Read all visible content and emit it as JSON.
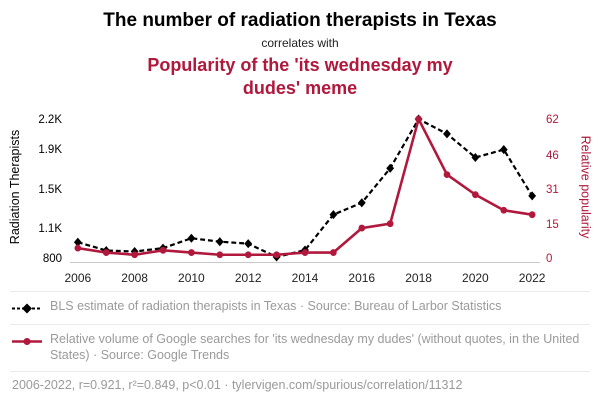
{
  "header": {
    "title": "The number of radiation therapists in Texas",
    "connector": "correlates with",
    "meme_title": "Popularity of the 'its wednesday my dudes' meme"
  },
  "colors": {
    "series1": "#000000",
    "series2": "#b0183c",
    "muted_text": "#9a9a9a"
  },
  "chart_data": {
    "type": "line",
    "title": "The number of radiation therapists in Texas correlates with Popularity of the 'its wednesday my dudes' meme",
    "x": [
      2006,
      2007,
      2008,
      2009,
      2010,
      2011,
      2012,
      2013,
      2014,
      2015,
      2016,
      2017,
      2018,
      2019,
      2020,
      2021,
      2022
    ],
    "x_ticks": [
      2006,
      2008,
      2010,
      2012,
      2014,
      2016,
      2018,
      2020,
      2022
    ],
    "series": [
      {
        "name": "BLS estimate of radiation therapists in Texas",
        "axis": "left",
        "style": "dashed-diamond",
        "values": [
          950,
          865,
          855,
          890,
          990,
          955,
          935,
          800,
          870,
          1230,
          1350,
          1700,
          2200,
          2050,
          1810,
          1890,
          1420
        ]
      },
      {
        "name": "Relative volume of Google searches for 'its wednesday my dudes'",
        "axis": "right",
        "style": "solid-circle",
        "values": [
          4,
          2,
          1,
          3,
          2,
          1,
          1,
          1,
          2,
          2,
          13,
          15,
          62,
          37,
          28,
          21,
          19
        ]
      }
    ],
    "left_axis": {
      "label": "Radiation Therapists",
      "ticks": [
        "800",
        "1.1K",
        "1.5K",
        "1.9K",
        "2.2K"
      ],
      "tick_values": [
        800,
        1100,
        1500,
        1900,
        2200
      ],
      "range": [
        800,
        2200
      ]
    },
    "right_axis": {
      "label": "Relative popularity",
      "ticks": [
        "0",
        "15",
        "31",
        "46",
        "62"
      ],
      "tick_values": [
        0,
        15,
        31,
        46,
        62
      ],
      "range": [
        0,
        62
      ]
    },
    "grid": false,
    "legend_position": "below"
  },
  "legend": [
    {
      "text": "BLS estimate of radiation therapists in Texas · Source: Bureau of Larbor Statistics"
    },
    {
      "text": "Relative volume of Google searches for 'its wednesday my dudes' (without quotes, in the United States) · Source: Google Trends"
    }
  ],
  "footer": "2006-2022, r=0.921, r²=0.849, p<0.01 · tylervigen.com/spurious/correlation/11312"
}
